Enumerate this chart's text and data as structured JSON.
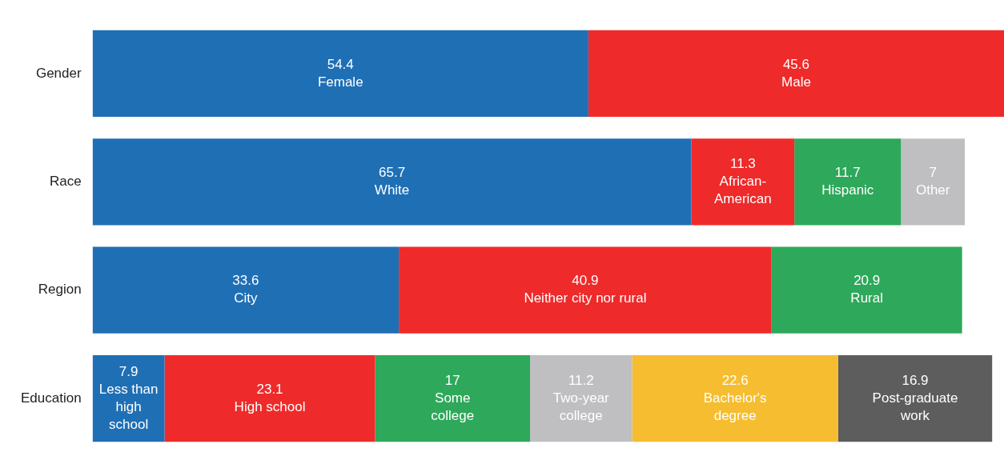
{
  "chart_data": {
    "type": "bar",
    "orientation": "horizontal",
    "stacked": true,
    "categories": [
      "Gender",
      "Race",
      "Region",
      "Education"
    ],
    "xlim": [
      0,
      100
    ],
    "tick_labels": "y",
    "legend": false,
    "series": [
      {
        "color": "#1f6fb5",
        "values": [
          54.4,
          65.7,
          33.6,
          7.9
        ],
        "value_labels": [
          "54.4\nFemale",
          "65.7\nWhite",
          "33.6\nCity",
          "7.9\nLess than\nhigh\nschool"
        ]
      },
      {
        "color": "#ee2a2a",
        "values": [
          45.6,
          11.3,
          40.9,
          23.1
        ],
        "value_labels": [
          "45.6\nMale",
          "11.3\nAfrican-\nAmerican",
          "40.9\nNeither city nor rural",
          "23.1\nHigh school"
        ]
      },
      {
        "color": "#2ea85a",
        "values": [
          null,
          11.7,
          20.9,
          17
        ],
        "value_labels": [
          null,
          "11.7\nHispanic",
          "20.9\nRural",
          "17\nSome\ncollege"
        ]
      },
      {
        "color": "#bfbfc1",
        "values": [
          null,
          7,
          null,
          11.2
        ],
        "value_labels": [
          null,
          "7\nOther",
          null,
          "11.2\nTwo-year\ncollege"
        ]
      },
      {
        "color": "#f5bd2f",
        "values": [
          null,
          null,
          null,
          22.6
        ],
        "value_labels": [
          null,
          null,
          null,
          "22.6\nBachelor's\ndegree"
        ]
      },
      {
        "color": "#5d5d5d",
        "values": [
          null,
          null,
          null,
          16.9
        ],
        "value_labels": [
          null,
          null,
          null,
          "16.9\nPost-graduate\nwork"
        ]
      }
    ]
  }
}
